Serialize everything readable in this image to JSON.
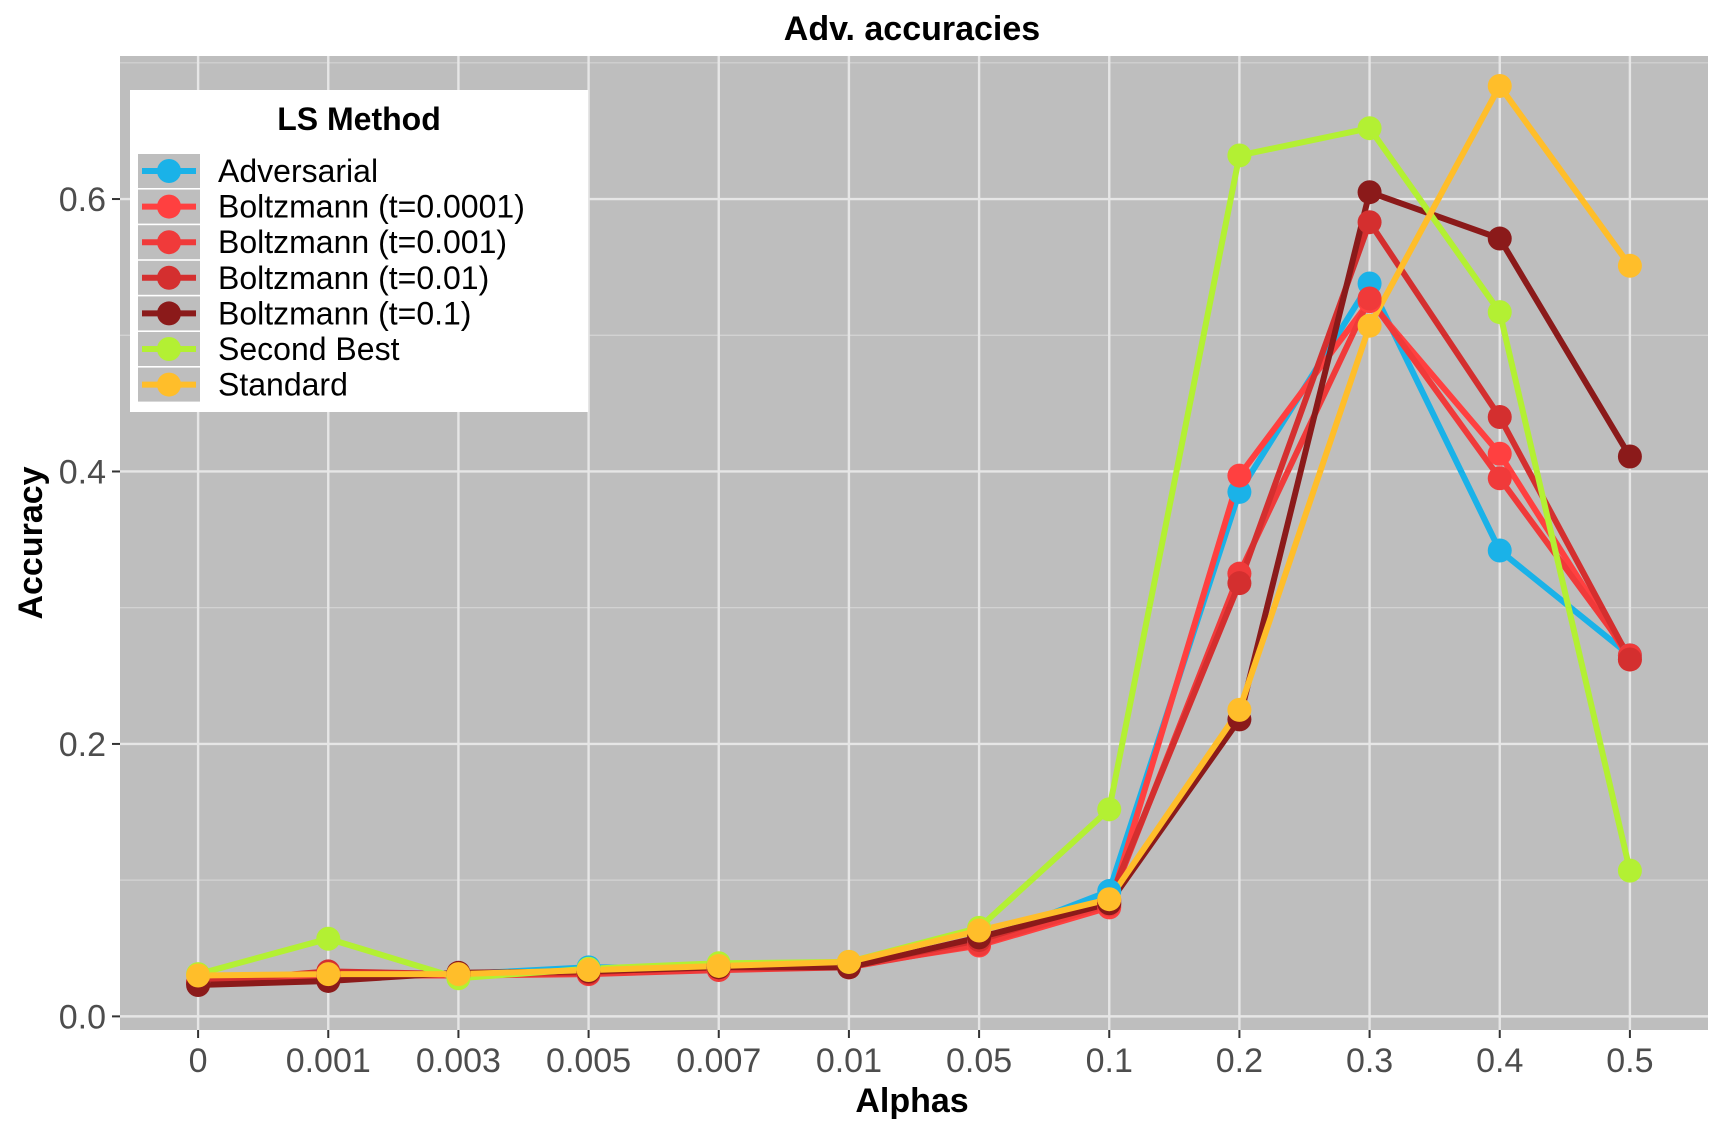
{
  "chart_data": {
    "type": "line",
    "title": "Adv. accuracies",
    "xlabel": "Alphas",
    "ylabel": "Accuracy",
    "categories": [
      "0",
      "0.001",
      "0.003",
      "0.005",
      "0.007",
      "0.01",
      "0.05",
      "0.1",
      "0.2",
      "0.3",
      "0.4",
      "0.5"
    ],
    "ylim": [
      -0.01,
      0.705
    ],
    "yticks": [
      0.0,
      0.2,
      0.4,
      0.6
    ],
    "ytick_labels": [
      "0.0",
      "0.2",
      "0.4",
      "0.6"
    ],
    "grid": true,
    "legend": {
      "title": "LS Method",
      "position": "top-left"
    },
    "series": [
      {
        "name": "Adversarial",
        "color": "#1ab2e8",
        "values": [
          0.025,
          0.03,
          0.031,
          0.036,
          0.035,
          0.037,
          0.055,
          0.092,
          0.385,
          0.538,
          0.342,
          0.265
        ]
      },
      {
        "name": "Boltzmann (t=0.0001)",
        "color": "#ff4040",
        "values": [
          0.025,
          0.03,
          0.03,
          0.032,
          0.035,
          0.037,
          0.052,
          0.08,
          0.397,
          0.525,
          0.413,
          0.262
        ]
      },
      {
        "name": "Boltzmann (t=0.001)",
        "color": "#f03a3a",
        "values": [
          0.025,
          0.03,
          0.03,
          0.031,
          0.034,
          0.036,
          0.053,
          0.082,
          0.325,
          0.527,
          0.395,
          0.265
        ]
      },
      {
        "name": "Boltzmann (t=0.01)",
        "color": "#d42f2f",
        "values": [
          0.025,
          0.033,
          0.031,
          0.032,
          0.038,
          0.037,
          0.056,
          0.085,
          0.318,
          0.583,
          0.44,
          0.262
        ]
      },
      {
        "name": "Boltzmann (t=0.1)",
        "color": "#8b1a1a",
        "values": [
          0.023,
          0.026,
          0.032,
          0.033,
          0.036,
          0.036,
          0.058,
          0.083,
          0.218,
          0.605,
          0.571,
          0.411
        ]
      },
      {
        "name": "Second Best",
        "color": "#b3f033",
        "values": [
          0.031,
          0.057,
          0.028,
          0.035,
          0.039,
          0.04,
          0.065,
          0.152,
          0.632,
          0.652,
          0.517,
          0.107
        ]
      },
      {
        "name": "Standard",
        "color": "#ffbe2a",
        "values": [
          0.03,
          0.031,
          0.031,
          0.034,
          0.037,
          0.04,
          0.063,
          0.086,
          0.225,
          0.507,
          0.683,
          0.551
        ]
      }
    ]
  }
}
